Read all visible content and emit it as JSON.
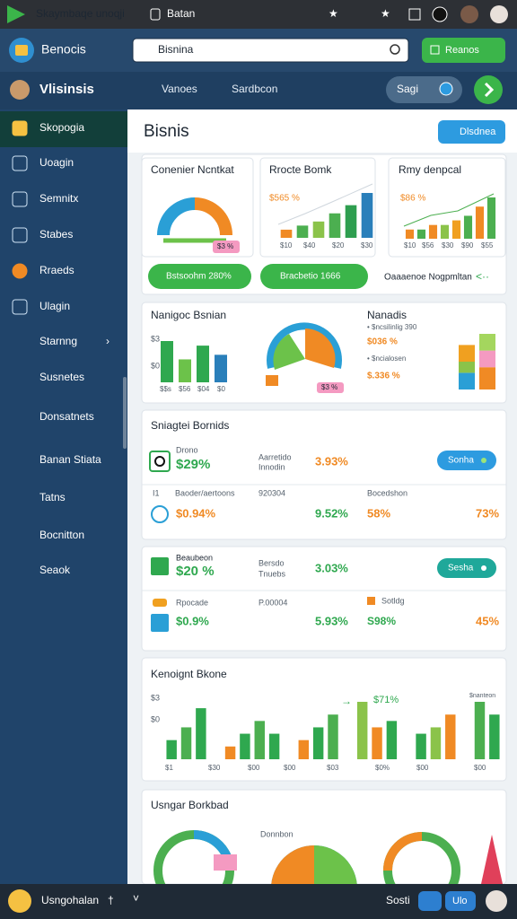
{
  "browser": {
    "tab": "Skaymbaqe unoqji",
    "tab2": "Batan"
  },
  "header": {
    "brand": "Benocis",
    "search": "Bisnina",
    "button": "Reanos"
  },
  "subheader": {
    "title": "Vlisinsis",
    "nav": [
      "Vanoes",
      "Sardbcon"
    ],
    "pill": "Sagi"
  },
  "sidebar": [
    "Skopogia",
    "Uoagin",
    "Semnitx",
    "Stabes",
    "Rraeds",
    "Ulagin",
    "Starnng",
    "Susnetes",
    "Donsatnets",
    "Banan Stiata",
    "Tatns",
    "Bocnitton",
    "Seaok"
  ],
  "page": {
    "title": "Bisnis",
    "button": "Dlsdnea"
  },
  "row1": {
    "cards": [
      {
        "title": "Conenier Ncntkat",
        "badge": "$3 %"
      },
      {
        "title": "Rrocte Bomk",
        "value": "$565 %",
        "xlabels": [
          "$10",
          "$40",
          "$20",
          "$30"
        ],
        "bars": {
          "values": [
            2,
            3,
            4,
            6,
            8,
            11
          ],
          "colors": [
            "#f08a24",
            "#4caf50",
            "#8bc34a",
            "#4caf50",
            "#2e9e4f",
            "#2a7fba"
          ]
        }
      },
      {
        "title": "Rmy denpcal",
        "value": "$86 %",
        "xlabels": [
          "$10",
          "$56",
          "$30",
          "$90",
          "$55"
        ],
        "bars": {
          "values": [
            2,
            2,
            3,
            3,
            4,
            5,
            7,
            9
          ],
          "colors": [
            "#f08a24",
            "#4caf50",
            "#f08a24",
            "#8bc34a",
            "#f0a020",
            "#4caf50",
            "#f08a24",
            "#4caf50"
          ]
        }
      }
    ],
    "buttons": [
      "Bstsoohm 280%",
      "Bracbetio 1666"
    ],
    "link": "Oaaaenoe Nogpmltan"
  },
  "row2": {
    "chart": {
      "title": "Nanigoc Bsnian",
      "ylabels": [
        "$3",
        "$0"
      ],
      "xlabels": [
        "$$s",
        "$56",
        "$04",
        "$0"
      ],
      "bars": {
        "values": [
          9,
          5,
          8,
          6
        ],
        "colors": [
          "#2fa84f",
          "#6cc24a",
          "#2fa84f",
          "#2a7fba"
        ]
      }
    },
    "gauge": {
      "badge": "$3 %"
    },
    "stats": {
      "title": "Nanadis",
      "label1": "• $ncsilinlig 390",
      "value1": "$036 %",
      "label2": "• $ncialosen",
      "value2": "$.336 %",
      "stacks": [
        [
          3,
          2,
          3
        ],
        [
          4,
          3,
          3
        ]
      ],
      "colors": [
        "#2a9fd6",
        "#8bc34a",
        "#f0a020"
      ],
      "colors2": [
        "#f08a24",
        "#f49ac1",
        "#a4d65e"
      ]
    }
  },
  "table1": {
    "title": "Sniagtei Bornids",
    "row1": {
      "label": "Drono",
      "value": "$29%",
      "desc": [
        "Aarretido",
        "Innodin"
      ],
      "pct": "3.93%",
      "button": "Sonha"
    },
    "row2": {
      "icon": "I1",
      "label": "Baoder/aertoons",
      "code": "920304",
      "label2": "Bocedshon",
      "value": "$0.94%",
      "pct": "9.52%",
      "pct2": "58%",
      "pct3": "73%"
    }
  },
  "table2": {
    "row1": {
      "label": "Beaubeon",
      "value": "$20 %",
      "desc": [
        "Bersdo",
        "Tnuebs"
      ],
      "pct": "3.03%",
      "button": "Sesha"
    },
    "row2": {
      "label": "Rpocade",
      "code": "P.00004",
      "label2": "Sotldg",
      "value": "$0.9%",
      "pct": "5.93%",
      "pct2": "S98%",
      "pct3": "45%"
    }
  },
  "chart3": {
    "title": "Kenoignt Bkone",
    "ylabels": [
      "$3",
      "$0"
    ],
    "highlight": "$71%",
    "note": "$nanteon",
    "xlabels": [
      "$1",
      "$30",
      "$00",
      "$00",
      "$03",
      "$0%",
      "$00",
      "$00"
    ],
    "bars": {
      "values": [
        3,
        5,
        8,
        null,
        2,
        4,
        6,
        4,
        null,
        3,
        5,
        7,
        null,
        9,
        5,
        6,
        null,
        4,
        5,
        7,
        null,
        9,
        7
      ],
      "colors": [
        "#2fa84f",
        "#4caf50",
        "#2fa84f",
        "#8bc34a",
        "#f08a24"
      ]
    }
  },
  "chart4": {
    "title": "Usngar Borkbad",
    "label": "Donnbon"
  },
  "footer": {
    "brand": "Usngohalan",
    "label": "Sosti",
    "button": "Ulo"
  }
}
